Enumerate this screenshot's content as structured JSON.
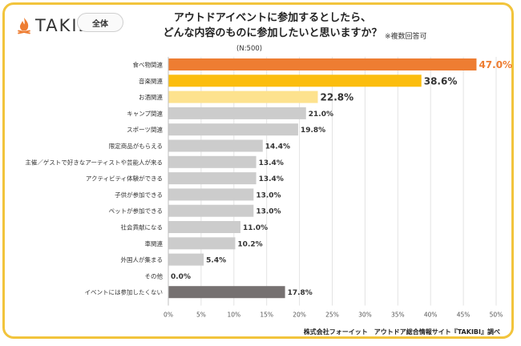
{
  "brand": {
    "logo_text": "TAKIBI",
    "tag_label": "全体"
  },
  "title_lines": [
    "アウトドアイベントに参加するとしたら、",
    "どんな内容のものに参加したいと思いますか？"
  ],
  "note": "※複数回答可",
  "sample": "(N:500)",
  "source": "株式会社フォーイット　アウトドア総合情報サイト『TAKIBI』調べ",
  "colors": {
    "first": "#ee7d32",
    "second": "#fbbd0e",
    "third": "#fde28e",
    "default": "#cccccc",
    "last": "#767171",
    "first_label": "#ee7d32",
    "label": "#333333",
    "frame": "#f2c43c"
  },
  "chart_data": {
    "type": "bar",
    "orientation": "horizontal",
    "categories": [
      "食べ物関連",
      "音楽関連",
      "お酒関連",
      "キャンプ関連",
      "スポーツ関連",
      "限定商品がもらえる",
      "主催／ゲストで好きなアーティストや芸能人が来る",
      "アクティビティ体験ができる",
      "子供が参加できる",
      "ペットが参加できる",
      "社会貢献になる",
      "車関連",
      "外国人が集まる",
      "その他",
      "イベントには参加したくない"
    ],
    "values": [
      47.0,
      38.6,
      22.8,
      21.0,
      19.8,
      14.4,
      13.4,
      13.4,
      13.0,
      13.0,
      11.0,
      10.2,
      5.4,
      0.0,
      17.8
    ],
    "value_labels": [
      "47.0%",
      "38.6%",
      "22.8%",
      "21.0%",
      "19.8%",
      "14.4%",
      "13.4%",
      "13.4%",
      "13.0%",
      "13.0%",
      "11.0%",
      "10.2%",
      "5.4%",
      "0.0%",
      "17.8%"
    ],
    "xlim": [
      0,
      50
    ],
    "x_ticks": [
      0,
      5,
      10,
      15,
      20,
      25,
      30,
      35,
      40,
      45,
      50
    ],
    "x_tick_labels": [
      "0%",
      "5%",
      "10%",
      "15%",
      "20%",
      "25%",
      "30%",
      "35%",
      "40%",
      "45%",
      "50%"
    ],
    "grid": true,
    "unit": "%"
  }
}
